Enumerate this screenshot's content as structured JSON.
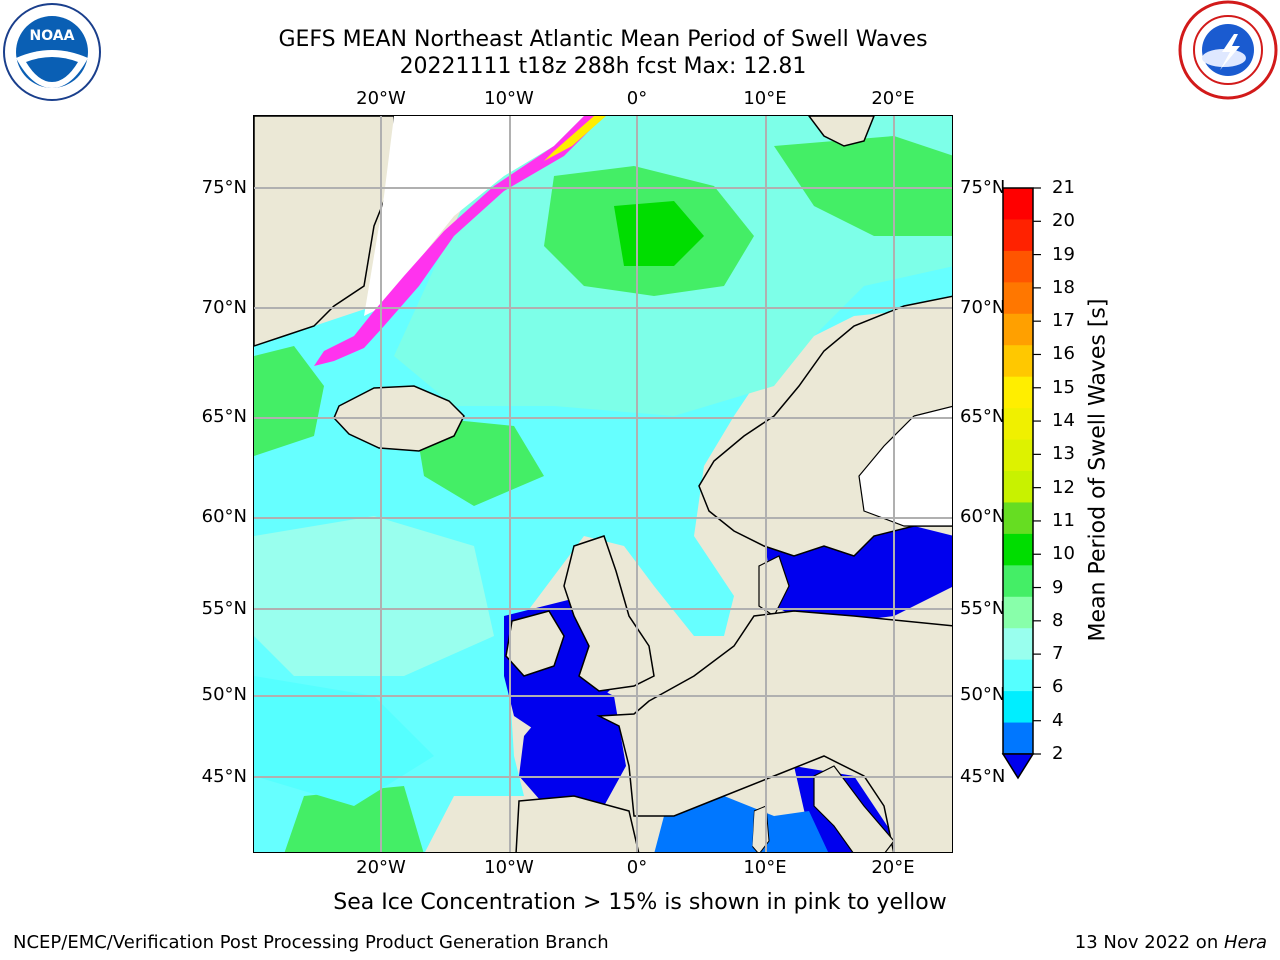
{
  "title": {
    "line1": "GEFS MEAN Northeast Atlantic Mean Period of Swell Waves",
    "line2": "20221111 t18z 288h fcst   Max: 12.81"
  },
  "logos": {
    "noaa": {
      "icon": "noaa-logo",
      "text": "NOAA",
      "ring_text": "NATIONAL OCEANIC AND ATMOSPHERIC ADMINISTRATION"
    },
    "nws": {
      "icon": "nws-logo",
      "ring_text": "NATIONAL WEATHER SERVICE"
    }
  },
  "map": {
    "longitude_ticks": [
      "20°W",
      "10°W",
      "0°",
      "10°E",
      "20°E"
    ],
    "latitude_ticks": [
      "75°N",
      "70°N",
      "65°N",
      "60°N",
      "55°N",
      "50°N",
      "45°N"
    ],
    "land_color": "#ebe8d6",
    "grid_color": "#b0b0b0"
  },
  "colorbar": {
    "label": "Mean Period of Swell Waves [s]",
    "ticks": [
      "21",
      "20",
      "19",
      "18",
      "17",
      "16",
      "15",
      "14",
      "13",
      "12",
      "11",
      "10",
      "9",
      "8",
      "7",
      "6",
      "4",
      "2"
    ],
    "colors_top_to_bottom": [
      "#ff0000",
      "#ff2200",
      "#ff5500",
      "#ff7700",
      "#ffa000",
      "#ffc800",
      "#ffee00",
      "#f0f000",
      "#ddf200",
      "#c8f200",
      "#66dd22",
      "#00dd00",
      "#44ee66",
      "#88ffaa",
      "#99ffee",
      "#55ffff",
      "#00eeff",
      "#0077ff",
      "#0000ee"
    ]
  },
  "note": "Sea Ice Concentration > 15% is shown in pink to yellow",
  "footer": {
    "left": "NCEP/EMC/Verification Post Processing Product Generation Branch",
    "right_date": "13 Nov 2022 on ",
    "right_host": "Hera"
  }
}
